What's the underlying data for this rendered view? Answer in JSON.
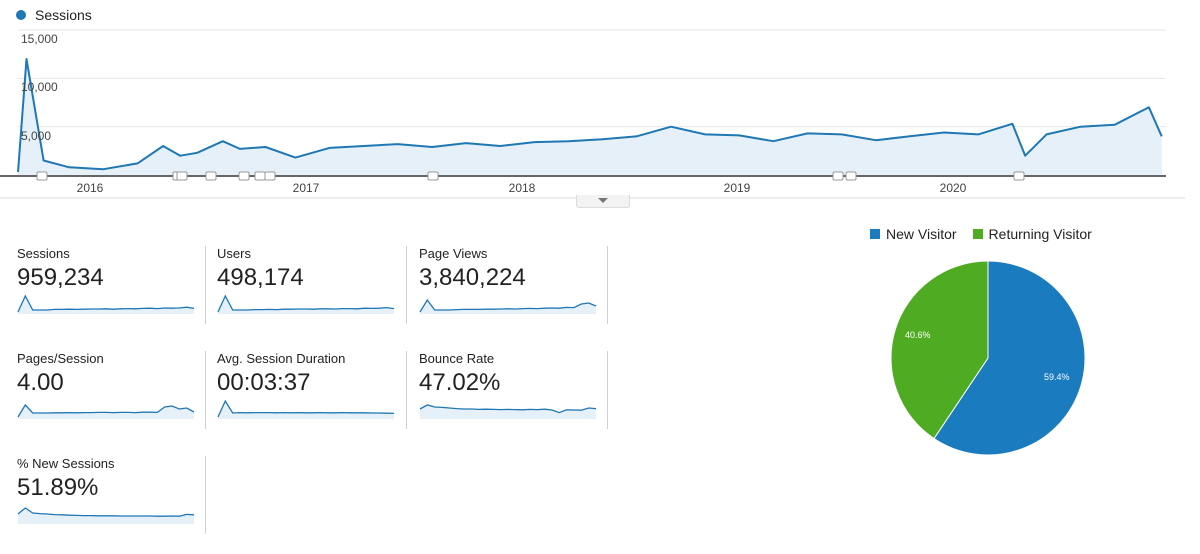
{
  "overview": {
    "metric_legend": "Sessions",
    "collapse_toggle": "chevron-down-icon"
  },
  "chart_data": [
    {
      "type": "line",
      "series": [
        {
          "name": "Sessions",
          "x": [
            "2015-09-07",
            "2015-09-21",
            "2015-10-19",
            "2015-11-30",
            "2016-01-25",
            "2016-03-21",
            "2016-05-02",
            "2016-05-30",
            "2016-06-27",
            "2016-08-08",
            "2016-09-05",
            "2016-10-17",
            "2016-12-05",
            "2017-01-30",
            "2017-03-27",
            "2017-05-22",
            "2017-07-17",
            "2017-09-11",
            "2017-11-06",
            "2018-01-01",
            "2018-02-26",
            "2018-04-23",
            "2018-06-18",
            "2018-08-13",
            "2018-10-08",
            "2018-12-03",
            "2019-01-28",
            "2019-03-25",
            "2019-05-20",
            "2019-07-15",
            "2019-09-09",
            "2019-11-04",
            "2019-12-30",
            "2020-02-24",
            "2020-03-16",
            "2020-04-20",
            "2020-06-15",
            "2020-08-10",
            "2020-10-05",
            "2020-10-26"
          ],
          "y": [
            300,
            12000,
            1500,
            800,
            600,
            1200,
            3000,
            2000,
            2300,
            3500,
            2700,
            2900,
            1800,
            2800,
            3000,
            3200,
            2900,
            3300,
            3000,
            3400,
            3500,
            3700,
            4000,
            5000,
            4200,
            4100,
            3500,
            4300,
            4200,
            3600,
            4000,
            4400,
            4200,
            5300,
            2000,
            4200,
            5000,
            5200,
            7000,
            4000
          ]
        }
      ],
      "ylim": [
        0,
        15000
      ],
      "yticks": [
        "5,000",
        "10,000",
        "15,000"
      ],
      "xticks": [
        "2016",
        "2017",
        "2018",
        "2019",
        "2020"
      ],
      "annotation_markers": 11,
      "colors": {
        "line": "#1f77b4",
        "fill": "#e5f0f8"
      },
      "grid": true
    },
    {
      "type": "pie",
      "categories": [
        "New Visitor",
        "Returning Visitor"
      ],
      "values": [
        59.4,
        40.6
      ],
      "labels": [
        "59.4%",
        "40.6%"
      ],
      "colors": [
        "#1a7bbf",
        "#4fab22"
      ],
      "legend": "top"
    }
  ],
  "metrics": [
    {
      "label": "Sessions",
      "value": "959,234"
    },
    {
      "label": "Users",
      "value": "498,174"
    },
    {
      "label": "Page Views",
      "value": "3,840,224"
    },
    {
      "label": "Pages/Session",
      "value": "4.00"
    },
    {
      "label": "Avg. Session Duration",
      "value": "00:03:37"
    },
    {
      "label": "Bounce Rate",
      "value": "47.02%"
    },
    {
      "label": "% New Sessions",
      "value": "51.89%"
    }
  ],
  "sparklines": {
    "sessions": [
      1,
      9,
      2,
      2,
      2,
      2.3,
      2.3,
      2.4,
      2.3,
      2.4,
      2.5,
      2.5,
      2.6,
      2.4,
      2.6,
      2.7,
      2.6,
      2.8,
      2.9,
      2.7,
      3,
      2.9,
      3,
      3.4,
      2.8
    ],
    "users": [
      1,
      9,
      2,
      2,
      2,
      2.2,
      2.2,
      2.3,
      2.2,
      2.4,
      2.4,
      2.5,
      2.5,
      2.4,
      2.6,
      2.6,
      2.5,
      2.7,
      2.7,
      2.6,
      2.9,
      2.8,
      2.9,
      3.2,
      2.7
    ],
    "page_views": [
      1,
      7,
      2,
      2,
      2,
      2.2,
      2.3,
      2.3,
      2.3,
      2.4,
      2.4,
      2.5,
      2.6,
      2.5,
      2.7,
      2.8,
      2.7,
      2.9,
      3,
      2.9,
      3.3,
      3.2,
      5,
      5.5,
      4
    ],
    "pages_session": [
      1,
      7,
      3,
      3,
      3,
      3.1,
      3.1,
      3.2,
      3.1,
      3.2,
      3.2,
      3.3,
      3.3,
      3.2,
      3.3,
      3.3,
      3.2,
      3.4,
      3.4,
      3.3,
      6,
      6.5,
      5,
      5.5,
      3.5
    ],
    "avg_duration": [
      1,
      9,
      3,
      3.2,
      3.1,
      3.2,
      3.2,
      3.2,
      3.1,
      3.2,
      3.1,
      3.2,
      3.1,
      3.1,
      3.2,
      3.1,
      3.1,
      3.2,
      3.1,
      3.1,
      3.1,
      3,
      3,
      2.9,
      2.8
    ],
    "bounce_rate": [
      5,
      7,
      6,
      5.8,
      5.5,
      5.2,
      5,
      5,
      4.8,
      4.9,
      4.8,
      4.7,
      4.8,
      4.7,
      4.6,
      4.8,
      4.7,
      4.9,
      4.5,
      3.2,
      4.6,
      4.5,
      4.4,
      5.5,
      5.2
    ],
    "new_sessions": [
      5,
      8,
      5.5,
      5.2,
      5,
      4.7,
      4.6,
      4.4,
      4.3,
      4.2,
      4.2,
      4.1,
      4.1,
      4.1,
      4,
      4,
      4,
      4,
      4,
      3.9,
      3.9,
      4,
      3.9,
      4.8,
      4.6
    ]
  }
}
